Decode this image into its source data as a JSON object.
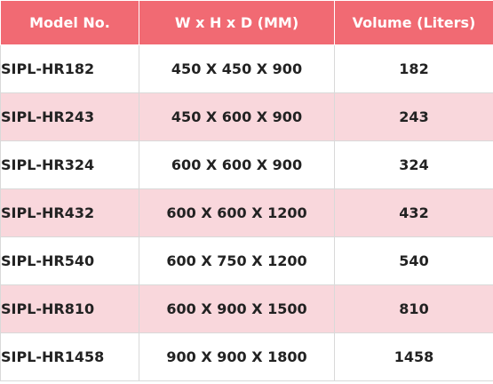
{
  "header": {
    "model": "Model No.",
    "dimensions": "W x H x D (MM)",
    "volume": "Volume (Liters)"
  },
  "rows": [
    {
      "model": "SIPL-HR182",
      "dims": "450 X 450 X 900",
      "volume": "182"
    },
    {
      "model": "SIPL-HR243",
      "dims": "450 X 600 X 900",
      "volume": "243"
    },
    {
      "model": "SIPL-HR324",
      "dims": "600 X 600 X 900",
      "volume": "324"
    },
    {
      "model": "SIPL-HR432",
      "dims": "600 X 600 X 1200",
      "volume": "432"
    },
    {
      "model": "SIPL-HR540",
      "dims": "600 X 750 X 1200",
      "volume": "540"
    },
    {
      "model": "SIPL-HR810",
      "dims": "600 X 900 X 1500",
      "volume": "810"
    },
    {
      "model": "SIPL-HR1458",
      "dims": "900 X 900 X 1800",
      "volume": "1458"
    }
  ],
  "colors": {
    "header_bg": "#f16a73",
    "alt_row_bg": "#f9d7dc"
  }
}
